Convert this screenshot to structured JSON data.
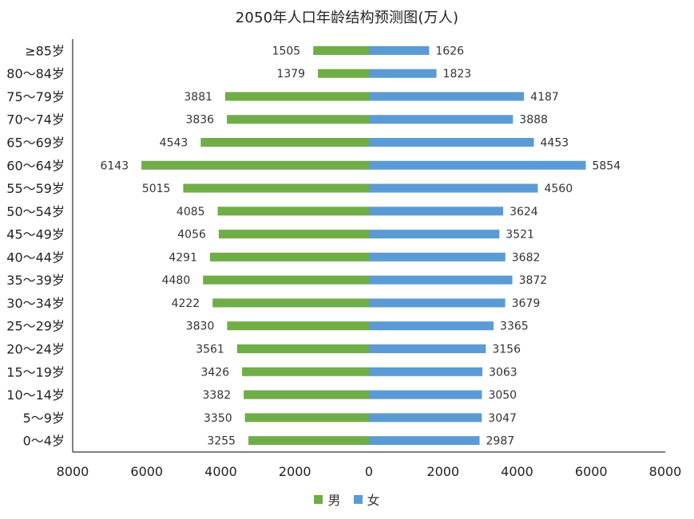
{
  "chart_data": {
    "type": "bar",
    "orientation": "horizontal",
    "title": "2050年人口年龄结构预测图(万人)",
    "categories": [
      "≥85岁",
      "80～84岁",
      "75～79岁",
      "70～74岁",
      "65～69岁",
      "60～64岁",
      "55～59岁",
      "50～54岁",
      "45～49岁",
      "40～44岁",
      "35～39岁",
      "30～34岁",
      "25～29岁",
      "20～24岁",
      "15～19岁",
      "10～14岁",
      "5～9岁",
      "0～4岁"
    ],
    "series": [
      {
        "name": "男",
        "color": "#70ad47",
        "values": [
          1505,
          1379,
          3881,
          3836,
          4543,
          6143,
          5015,
          4085,
          4056,
          4291,
          4480,
          4222,
          3830,
          3561,
          3426,
          3382,
          3350,
          3255
        ]
      },
      {
        "name": "女",
        "color": "#5b9bd5",
        "values": [
          1626,
          1823,
          4187,
          3888,
          4453,
          5854,
          4560,
          3624,
          3521,
          3682,
          3872,
          3679,
          3365,
          3156,
          3063,
          3050,
          3047,
          2987
        ]
      }
    ],
    "x_ticks": [
      "8000",
      "6000",
      "4000",
      "2000",
      "0",
      "2000",
      "4000",
      "6000",
      "8000"
    ],
    "xlim": [
      -8000,
      8000
    ],
    "grid": false,
    "legend_position": "bottom"
  }
}
